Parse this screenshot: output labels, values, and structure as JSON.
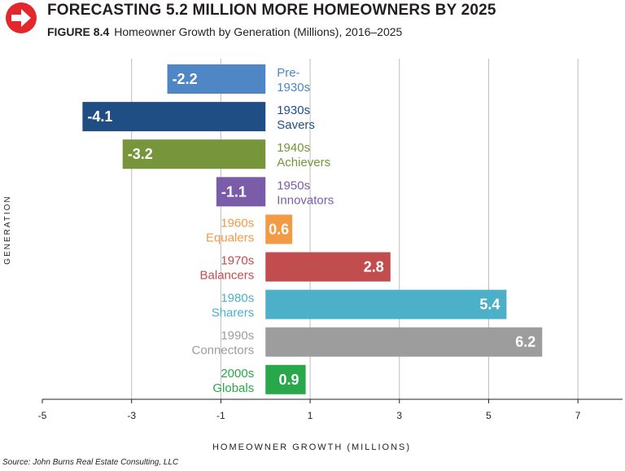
{
  "header": {
    "title": "FORECASTING 5.2 MILLION MORE HOMEOWNERS BY 2025",
    "figure_label": "FIGURE 8.4",
    "subtitle": "Homeowner Growth by Generation (Millions), 2016–2025",
    "icon": "right-arrow-circle-icon",
    "icon_color": "#e2282d"
  },
  "source": "Source: John Burns Real Estate Consulting, LLC",
  "chart_data": {
    "type": "bar",
    "orientation": "horizontal",
    "title": "Homeowner Growth by Generation (Millions), 2016–2025",
    "xlabel": "HOMEOWNER GROWTH (MILLIONS)",
    "ylabel": "GENERATION",
    "xlim": [
      -5,
      8
    ],
    "xticks": [
      -5,
      -3,
      -1,
      1,
      3,
      5,
      7
    ],
    "grid": "vertical",
    "bars": [
      {
        "label": [
          "Pre-",
          "1930s"
        ],
        "value": -2.2,
        "display": "-2.2",
        "color": "#4f86c6"
      },
      {
        "label": [
          "1930s",
          "Savers"
        ],
        "value": -4.1,
        "display": "-4.1",
        "color": "#1f4e85"
      },
      {
        "label": [
          "1940s",
          "Achievers"
        ],
        "value": -3.2,
        "display": "-3.2",
        "color": "#77953a"
      },
      {
        "label": [
          "1950s",
          "Innovators"
        ],
        "value": -1.1,
        "display": "-1.1",
        "color": "#7a5ca8"
      },
      {
        "label": [
          "1960s",
          "Equalers"
        ],
        "value": 0.6,
        "display": "0.6",
        "color": "#f39a44"
      },
      {
        "label": [
          "1970s",
          "Balancers"
        ],
        "value": 2.8,
        "display": "2.8",
        "color": "#c24d4f"
      },
      {
        "label": [
          "1980s",
          "Sharers"
        ],
        "value": 5.4,
        "display": "5.4",
        "color": "#4cb0c8"
      },
      {
        "label": [
          "1990s",
          "Connectors"
        ],
        "value": 6.2,
        "display": "6.2",
        "color": "#9d9d9d"
      },
      {
        "label": [
          "2000s",
          "Globals"
        ],
        "value": 0.9,
        "display": "0.9",
        "color": "#28a84a"
      }
    ]
  }
}
